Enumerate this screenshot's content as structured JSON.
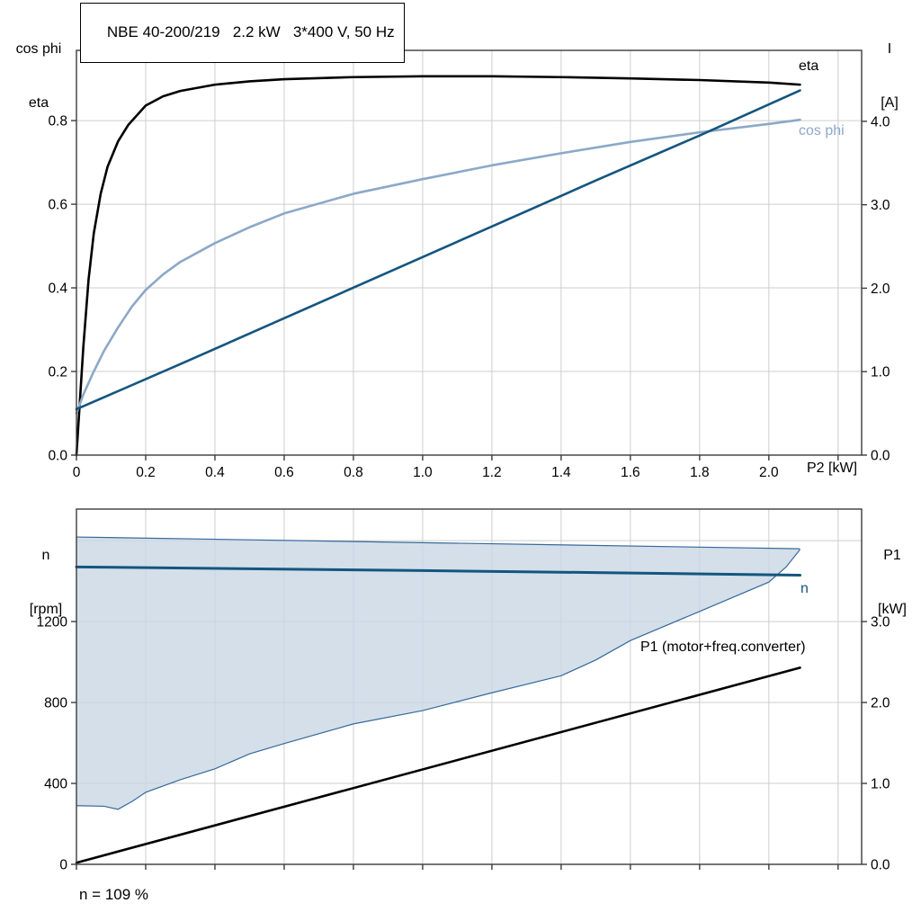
{
  "header": {
    "title_box": "NBE 40-200/219   2.2 kW   3*400 V, 50 Hz"
  },
  "top_chart": {
    "left_axis_title": [
      "cos phi",
      "eta"
    ],
    "right_axis_title": [
      "I",
      "[A]"
    ],
    "x_axis_title": "P2 [kW]",
    "curve_labels": {
      "eta": "eta",
      "cos_phi": "cos phi"
    }
  },
  "bottom_chart": {
    "left_axis_title": [
      "n",
      "[rpm]"
    ],
    "right_axis_title": [
      "P1",
      "[kW]"
    ],
    "curve_labels": {
      "n": "n",
      "p1": "P1 (motor+freq.converter)"
    },
    "annotation": "n = 109 %"
  },
  "colors": {
    "black": "#000000",
    "dark_blue": "#14557f",
    "light_blue": "#8ca8c8",
    "band_fill": "#c9d7e5",
    "band_line": "#36699a",
    "grid": "#cdcdcd"
  },
  "chart_data": [
    {
      "type": "line",
      "name": "motor-performance-chart",
      "title": "NBE 40-200/219 2.2 kW 3*400 V, 50 Hz",
      "xlabel": "P2 [kW]",
      "xlim": [
        0,
        2.268
      ],
      "x_ticks": [
        0,
        0.2,
        0.4,
        0.6,
        0.8,
        1.0,
        1.2,
        1.4,
        1.6,
        1.8,
        2.0,
        2.2
      ],
      "x_tick_labels": [
        "0",
        "0.2",
        "0.4",
        "0.6",
        "0.8",
        "1.0",
        "1.2",
        "1.4",
        "1.6",
        "1.8",
        "2.0",
        ""
      ],
      "grid": true,
      "legend_position": "labels-at-curve-end",
      "left_axis": {
        "label": "cos phi / eta",
        "lim": [
          0,
          0.968
        ],
        "ticks": [
          0,
          0.2,
          0.4,
          0.6,
          0.8
        ],
        "tick_labels": [
          "0.0",
          "0.2",
          "0.4",
          "0.6",
          "0.8"
        ]
      },
      "right_axis": {
        "label": "I [A]",
        "lim": [
          0,
          4.85
        ],
        "ticks": [
          0,
          1,
          2,
          3,
          4
        ],
        "tick_labels": [
          "0.0",
          "1.0",
          "2.0",
          "3.0",
          "4.0"
        ]
      },
      "series": [
        {
          "name": "eta",
          "axis": "left",
          "color": "#000000",
          "width": 2.6,
          "x": [
            0,
            0.01,
            0.02,
            0.035,
            0.05,
            0.07,
            0.09,
            0.12,
            0.15,
            0.2,
            0.25,
            0.3,
            0.4,
            0.5,
            0.6,
            0.8,
            1.0,
            1.2,
            1.4,
            1.6,
            1.8,
            2.0,
            2.09
          ],
          "y": [
            0,
            0.13,
            0.26,
            0.42,
            0.53,
            0.625,
            0.69,
            0.75,
            0.79,
            0.836,
            0.858,
            0.871,
            0.886,
            0.894,
            0.899,
            0.904,
            0.906,
            0.906,
            0.904,
            0.901,
            0.897,
            0.891,
            0.886
          ]
        },
        {
          "name": "cos phi",
          "axis": "left",
          "color": "#8ca8c8",
          "width": 2.6,
          "x": [
            0,
            0.02,
            0.05,
            0.08,
            0.12,
            0.16,
            0.2,
            0.25,
            0.3,
            0.4,
            0.5,
            0.6,
            0.8,
            1.0,
            1.2,
            1.4,
            1.6,
            1.8,
            2.0,
            2.09
          ],
          "y": [
            0.1,
            0.145,
            0.2,
            0.25,
            0.305,
            0.355,
            0.395,
            0.432,
            0.462,
            0.507,
            0.545,
            0.578,
            0.625,
            0.66,
            0.693,
            0.722,
            0.749,
            0.772,
            0.792,
            0.802
          ]
        },
        {
          "name": "I",
          "axis": "right",
          "color": "#14557f",
          "width": 2.6,
          "x": [
            0,
            0.3,
            0.6,
            0.9,
            1.2,
            1.5,
            1.8,
            2.09
          ],
          "y": [
            0.55,
            1.09,
            1.64,
            2.19,
            2.74,
            3.29,
            3.83,
            4.37
          ]
        }
      ]
    },
    {
      "type": "line",
      "name": "speed-power-chart",
      "title": "",
      "xlabel": "",
      "xlim": [
        0,
        2.268
      ],
      "x_ticks": [
        0,
        0.2,
        0.4,
        0.6,
        0.8,
        1.0,
        1.2,
        1.4,
        1.6,
        1.8,
        2.0,
        2.2
      ],
      "x_tick_labels": [
        "",
        "",
        "",
        "",
        "",
        "",
        "",
        "",
        "",
        "",
        "",
        ""
      ],
      "grid": true,
      "annotation": "n = 109 %",
      "legend_position": "labels-at-curve-end",
      "left_axis": {
        "label": "n [rpm]",
        "lim": [
          0,
          1756
        ],
        "ticks": [
          0,
          400,
          800,
          1200,
          1600
        ],
        "tick_labels": [
          "0",
          "400",
          "800",
          "1200",
          ""
        ]
      },
      "right_axis": {
        "label": "P1 [kW]",
        "lim": [
          0,
          4.39
        ],
        "ticks": [
          0,
          1,
          2,
          3
        ],
        "tick_labels": [
          "0.0",
          "1.0",
          "2.0",
          "3.0"
        ]
      },
      "band": {
        "name": "speed-operating-envelope",
        "upper": {
          "x": [
            0,
            1.0,
            2.09
          ],
          "y": [
            1618,
            1590,
            1560
          ]
        },
        "lower": {
          "x": [
            0,
            0.08,
            0.12,
            0.16,
            0.2,
            0.3,
            0.4,
            0.5,
            0.6,
            0.8,
            1.0,
            1.2,
            1.4,
            1.5,
            1.6,
            1.8,
            2.0,
            2.05,
            2.09
          ],
          "y": [
            290,
            287,
            272,
            310,
            356,
            418,
            472,
            546,
            597,
            694,
            760,
            848,
            932,
            1010,
            1106,
            1250,
            1395,
            1470,
            1556
          ]
        }
      },
      "series": [
        {
          "name": "n",
          "axis": "left",
          "color": "#14557f",
          "width": 3,
          "x": [
            0,
            0.5,
            1.0,
            1.5,
            2.09
          ],
          "y": [
            1470,
            1461,
            1452,
            1442,
            1429
          ]
        },
        {
          "name": "P1 motor+freq.converter",
          "axis": "right",
          "color": "#000000",
          "width": 2.6,
          "x": [
            0,
            2.09
          ],
          "y": [
            0.02,
            2.43
          ]
        }
      ]
    }
  ]
}
